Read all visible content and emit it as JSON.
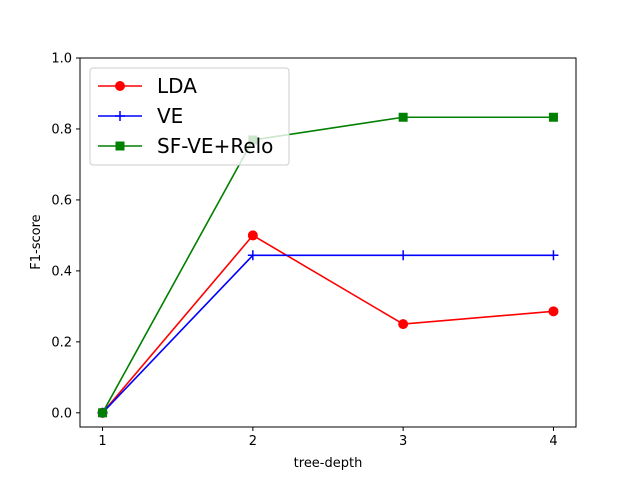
{
  "chart_data": {
    "type": "line",
    "title": "",
    "xlabel": "tree-depth",
    "ylabel": "F1-score",
    "x": [
      1,
      2,
      3,
      4
    ],
    "xticks": [
      "1",
      "2",
      "3",
      "4"
    ],
    "yticks": [
      "0.0",
      "0.2",
      "0.4",
      "0.6",
      "0.8",
      "1.0"
    ],
    "xlim": [
      0.85,
      4.15
    ],
    "ylim": [
      -0.04,
      1.0
    ],
    "grid": false,
    "legend_position": "top-left",
    "series": [
      {
        "name": "LDA",
        "color": "#ff0000",
        "marker": "circle",
        "values": [
          0.0,
          0.5,
          0.25,
          0.286
        ]
      },
      {
        "name": "VE",
        "color": "#0000ff",
        "marker": "plus",
        "values": [
          0.0,
          0.444,
          0.444,
          0.444
        ]
      },
      {
        "name": "SF-VE+Relo",
        "color": "#008000",
        "marker": "square",
        "values": [
          0.0,
          0.769,
          0.833,
          0.833
        ]
      }
    ]
  }
}
